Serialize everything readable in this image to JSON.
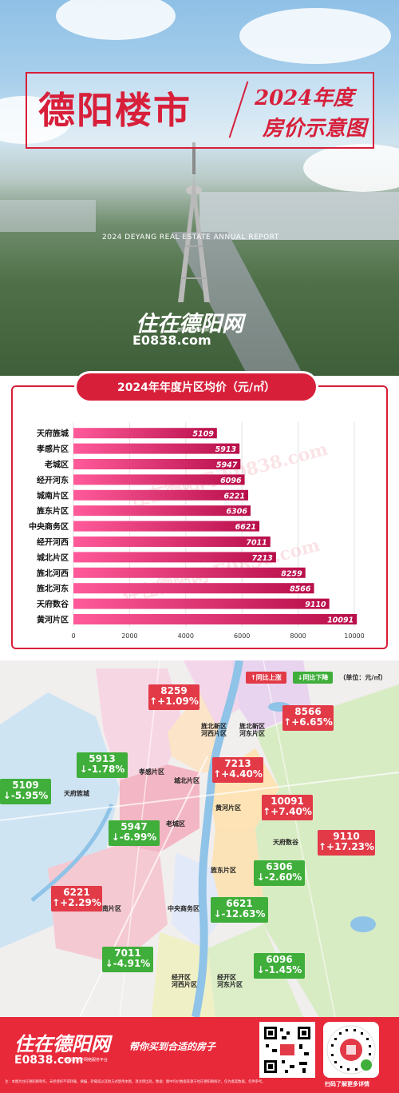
{
  "hero": {
    "title_main": "德阳楼市",
    "title_year": "2024年度",
    "title_sub": "房价示意图",
    "report_en": "2024 DEYANG REAL ESTATE ANNUAL REPORT",
    "logo_main": "住在德阳网",
    "logo_domain": "E0838.com",
    "logo_tagline": "德阳房地产网络服务平台"
  },
  "chart_data": {
    "type": "bar",
    "orientation": "horizontal",
    "title": "2024年年度片区均价（元/㎡）",
    "categories": [
      "天府旌城",
      "孝感片区",
      "老城区",
      "经开河东",
      "城南片区",
      "旌东片区",
      "中央商务区",
      "经开河西",
      "城北片区",
      "旌北河西",
      "旌北河东",
      "天府数谷",
      "黄河片区"
    ],
    "values": [
      5109,
      5913,
      5947,
      6096,
      6221,
      6306,
      6621,
      7011,
      7213,
      8259,
      8566,
      9110,
      10091
    ],
    "xlim": [
      0,
      10000
    ],
    "xticks": [
      "0",
      "2000",
      "4000",
      "6000",
      "8000",
      "10000"
    ],
    "grid": true,
    "watermark": "住在德阳网 E0838.com",
    "colors": {
      "bar_start": "#ff5a9a",
      "bar_end": "#b80f4a",
      "grid": "#e2e2e2"
    }
  },
  "map": {
    "legend": {
      "up": "↑同比上涨",
      "down": "↓同比下降",
      "unit": "（单位：元/㎡）"
    },
    "regions": [
      {
        "name": "天府旌城",
        "label": "天府旌城"
      },
      {
        "name": "孝感片区",
        "label": "孝感片区"
      },
      {
        "name": "老城区",
        "label": "老城区"
      },
      {
        "name": "城北片区",
        "label": "城北片区"
      },
      {
        "name": "旌北新区河西片区",
        "label": "旌北新区\n河西片区"
      },
      {
        "name": "旌北新区河东片区",
        "label": "旌北新区\n河东片区"
      },
      {
        "name": "黄河片区",
        "label": "黄河片区"
      },
      {
        "name": "天府数谷",
        "label": "天府数谷"
      },
      {
        "name": "旌东片区",
        "label": "旌东片区"
      },
      {
        "name": "中央商务区",
        "label": "中央商务区"
      },
      {
        "name": "城南片区",
        "label": "城南片区"
      },
      {
        "name": "经开区河西片区",
        "label": "经开区\n河西片区"
      },
      {
        "name": "经开区河东片区",
        "label": "经开区\n河东片区"
      }
    ],
    "badges": [
      {
        "id": "chengbei-hexi",
        "price": "8259",
        "change": "↑+1.09%",
        "dir": "up"
      },
      {
        "id": "jingbei-hedong",
        "price": "8566",
        "change": "↑+6.65%",
        "dir": "up"
      },
      {
        "id": "xiaogan",
        "price": "5913",
        "change": "↓-1.78%",
        "dir": "down"
      },
      {
        "id": "chengbei",
        "price": "7213",
        "change": "↑+4.40%",
        "dir": "up"
      },
      {
        "id": "tianfu-jingcheng",
        "price": "5109",
        "change": "↓-5.95%",
        "dir": "down"
      },
      {
        "id": "huanghe",
        "price": "10091",
        "change": "↑+7.40%",
        "dir": "up"
      },
      {
        "id": "laocheng",
        "price": "5947",
        "change": "↓-6.99%",
        "dir": "down"
      },
      {
        "id": "tianfu-shugu",
        "price": "9110",
        "change": "↑+17.23%",
        "dir": "up"
      },
      {
        "id": "jingdong",
        "price": "6306",
        "change": "↓-2.60%",
        "dir": "down"
      },
      {
        "id": "chengnan",
        "price": "6221",
        "change": "↑+2.29%",
        "dir": "up"
      },
      {
        "id": "cbd",
        "price": "6621",
        "change": "↓-12.63%",
        "dir": "down"
      },
      {
        "id": "jingkai-hexi",
        "price": "7011",
        "change": "↓-4.91%",
        "dir": "down"
      },
      {
        "id": "jingkai-hedong",
        "price": "6096",
        "change": "↓-1.45%",
        "dir": "down"
      }
    ],
    "colors": {
      "up": "#e23a47",
      "down": "#3fae3a"
    }
  },
  "footer": {
    "logo_main": "住在德阳网",
    "logo_domain": "E0838.com",
    "logo_tagline": "德阳房地产网络服务平台",
    "slogan": "帮你买到合适的房子",
    "scan_text": "扫码了解更多详情",
    "disclaimer": "注：本图为住在德阳网制作，未经授权不得转载、摘编，转载或以其他方式使用本图，须注明出处。数据：图中均价数据来源于住在德阳网统计，仅为备案数据，仅供参考。"
  }
}
